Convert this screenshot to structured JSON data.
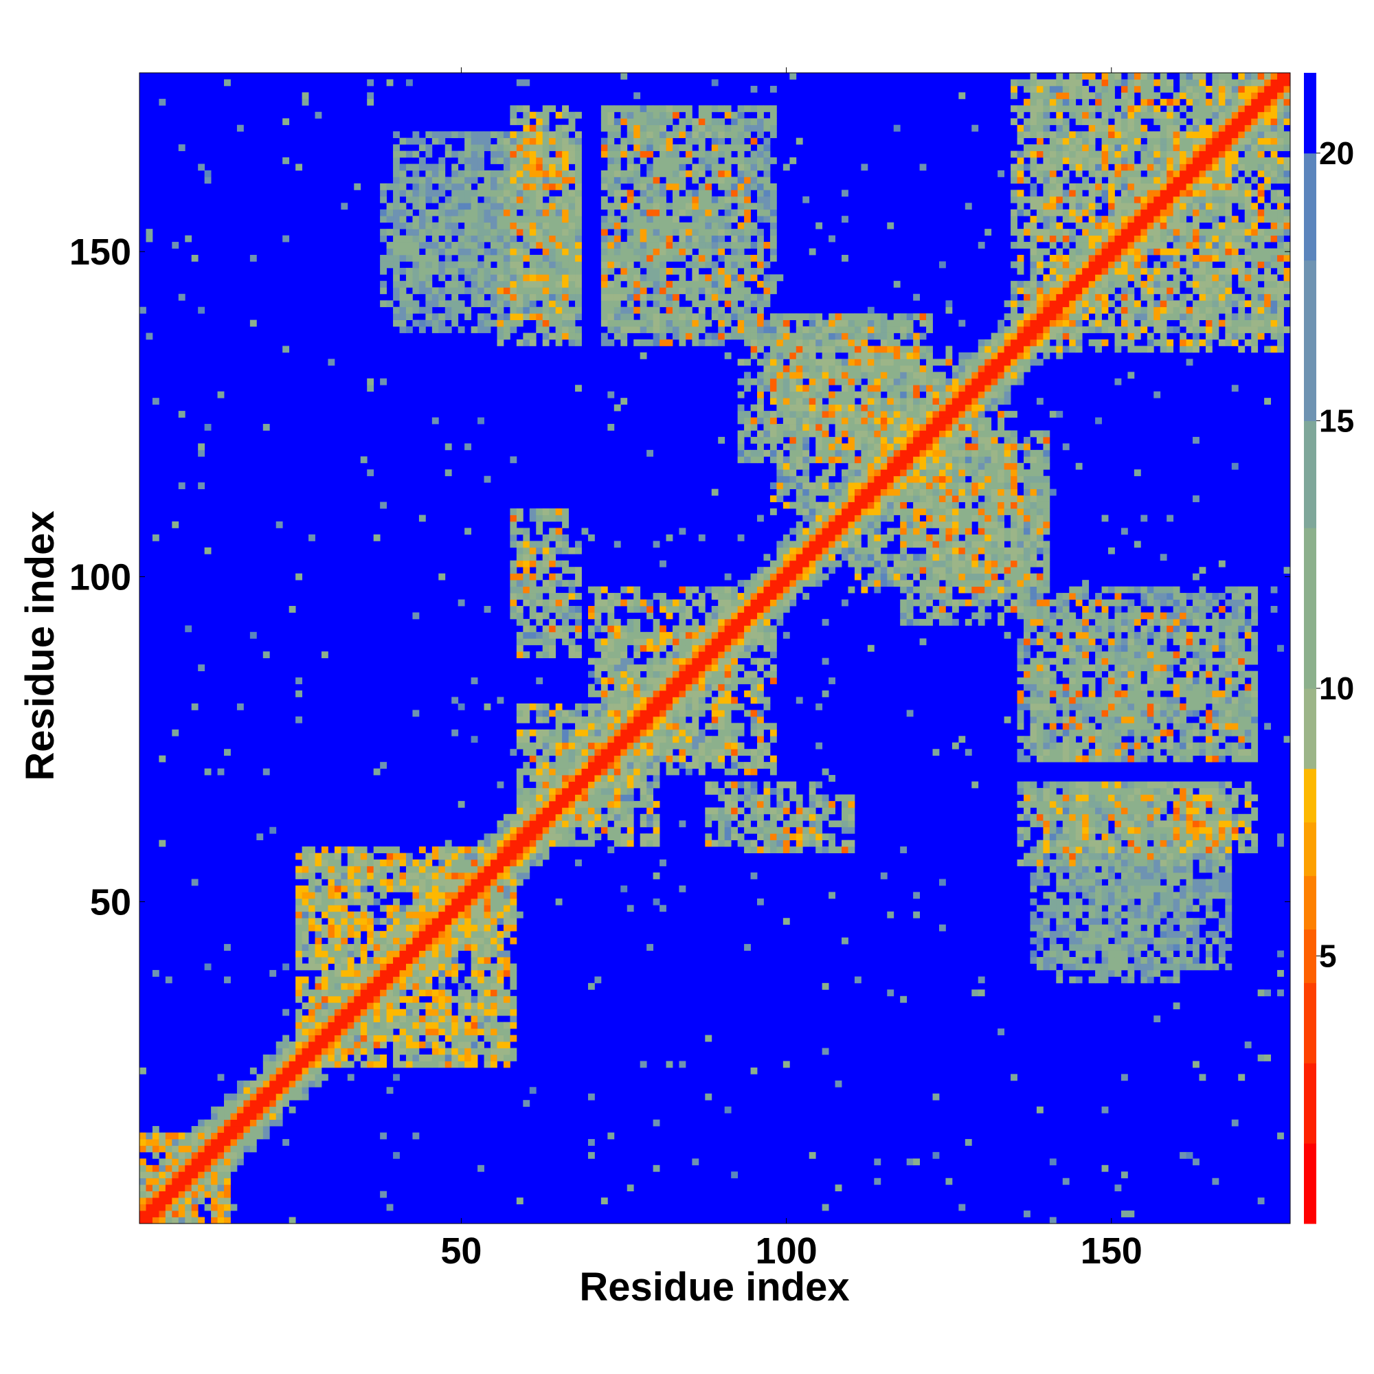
{
  "chart_data": {
    "type": "heatmap",
    "title": "",
    "xlabel": "Residue index",
    "ylabel": "Residue index",
    "xlim": [
      1,
      177
    ],
    "ylim": [
      1,
      177
    ],
    "x_ticks": [
      50,
      100,
      150
    ],
    "y_ticks": [
      50,
      100,
      150
    ],
    "colorbar": {
      "range": [
        0,
        21.5
      ],
      "ticks": [
        5,
        10,
        15,
        20
      ],
      "levels": [
        {
          "max": 1.5,
          "color": "#ff0000"
        },
        {
          "max": 3.0,
          "color": "#fe2000"
        },
        {
          "max": 4.5,
          "color": "#fe4000"
        },
        {
          "max": 5.5,
          "color": "#fe6000"
        },
        {
          "max": 6.5,
          "color": "#fe8000"
        },
        {
          "max": 7.5,
          "color": "#fda000"
        },
        {
          "max": 8.5,
          "color": "#fdb800"
        },
        {
          "max": 10.0,
          "color": "#9cb588"
        },
        {
          "max": 13.0,
          "color": "#8cb08c"
        },
        {
          "max": 15.0,
          "color": "#7fa79a"
        },
        {
          "max": 18.0,
          "color": "#6e93b2"
        },
        {
          "max": 20.0,
          "color": "#5b85bd"
        },
        {
          "max": 21.5,
          "color": "#0000ff"
        }
      ]
    },
    "diagonal_value": 2,
    "contact_regions": [
      {
        "x": [
          1,
          14
        ],
        "y": [
          1,
          14
        ],
        "value": 9,
        "orange": true
      },
      {
        "x": [
          25,
          58
        ],
        "y": [
          25,
          58
        ],
        "value": 10,
        "orange": true
      },
      {
        "x": [
          58,
          68
        ],
        "y": [
          140,
          172
        ],
        "value": 11,
        "orange": true
      },
      {
        "x": [
          38,
          68
        ],
        "y": [
          142,
          162
        ],
        "value": 13,
        "orange": false
      },
      {
        "x": [
          72,
          94
        ],
        "y": [
          138,
          172
        ],
        "value": 12,
        "orange": true
      },
      {
        "x": [
          93,
          120
        ],
        "y": [
          118,
          140
        ],
        "value": 12,
        "orange": true
      },
      {
        "x": [
          110,
          135
        ],
        "y": [
          98,
          125
        ],
        "value": 11,
        "orange": true
      },
      {
        "x": [
          122,
          140
        ],
        "y": [
          98,
          122
        ],
        "value": 12,
        "orange": true
      },
      {
        "x": [
          138,
          176
        ],
        "y": [
          135,
          177
        ],
        "value": 11,
        "orange": true
      },
      {
        "x": [
          59,
          68
        ],
        "y": [
          88,
          105
        ],
        "value": 11,
        "orange": true
      },
      {
        "x": [
          70,
          92
        ],
        "y": [
          72,
          98
        ],
        "value": 11,
        "orange": true
      },
      {
        "x": [
          59,
          76
        ],
        "y": [
          62,
          80
        ],
        "value": 11,
        "orange": true
      },
      {
        "x": [
          90,
          110
        ],
        "y": [
          58,
          66
        ],
        "value": 12,
        "orange": true
      },
      {
        "x": [
          136,
          172
        ],
        "y": [
          72,
          98
        ],
        "value": 13,
        "orange": true
      },
      {
        "x": [
          136,
          168
        ],
        "y": [
          56,
          68
        ],
        "value": 12,
        "orange": true
      },
      {
        "x": [
          160,
          168
        ],
        "y": [
          58,
          66
        ],
        "value": 9,
        "orange": true
      },
      {
        "x": [
          138,
          168
        ],
        "y": [
          40,
          58
        ],
        "value": 15,
        "orange": false
      }
    ]
  }
}
